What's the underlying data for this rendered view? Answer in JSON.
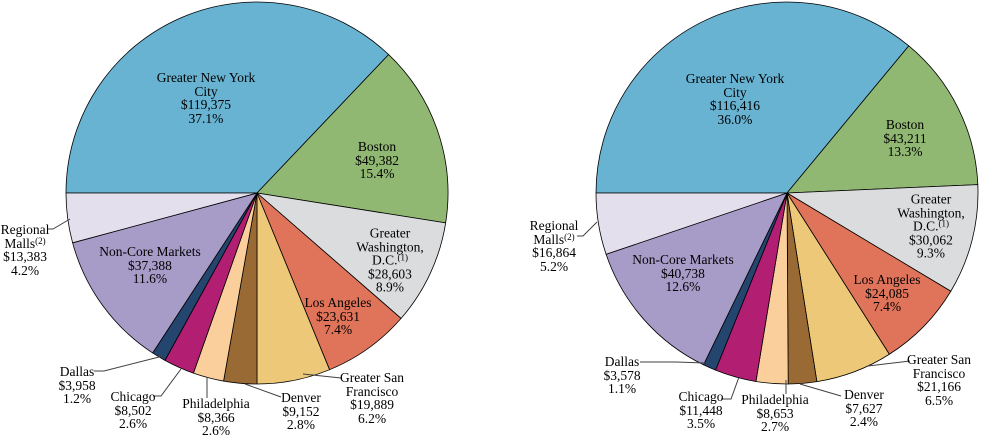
{
  "chart_data": [
    {
      "id": "left-pie",
      "type": "pie",
      "title": "",
      "start_angle_clockwise_from_top_deg": 270,
      "legend": "none",
      "slices": [
        {
          "name": "Greater New York City",
          "name_lines": [
            "Greater New York",
            "City"
          ],
          "footnote": "",
          "value": "$119,375",
          "value_num": 119375,
          "pct": "37.1%",
          "pct_num": 37.1,
          "color": "#68b3d2",
          "label_placement": "inside"
        },
        {
          "name": "Boston",
          "name_lines": [
            "Boston"
          ],
          "footnote": "",
          "value": "$49,382",
          "value_num": 49382,
          "pct": "15.4%",
          "pct_num": 15.4,
          "color": "#91b873",
          "label_placement": "inside"
        },
        {
          "name": "Greater Washington, D.C.",
          "name_lines": [
            "Greater",
            "Washington,",
            "D.C."
          ],
          "footnote": "(1)",
          "value": "$28,603",
          "value_num": 28603,
          "pct": "8.9%",
          "pct_num": 8.9,
          "color": "#dbdcde",
          "label_placement": "inside"
        },
        {
          "name": "Los Angeles",
          "name_lines": [
            "Los Angeles"
          ],
          "footnote": "",
          "value": "$23,631",
          "value_num": 23631,
          "pct": "7.4%",
          "pct_num": 7.4,
          "color": "#e0745a",
          "label_placement": "inside"
        },
        {
          "name": "Greater San Francisco",
          "name_lines": [
            "Greater San",
            "Francisco"
          ],
          "footnote": "",
          "value": "$19,889",
          "value_num": 19889,
          "pct": "6.2%",
          "pct_num": 6.2,
          "color": "#ecc878",
          "label_placement": "outside"
        },
        {
          "name": "Denver",
          "name_lines": [
            "Denver"
          ],
          "footnote": "",
          "value": "$9,152",
          "value_num": 9152,
          "pct": "2.8%",
          "pct_num": 2.8,
          "color": "#9a6a35",
          "label_placement": "outside"
        },
        {
          "name": "Philadelphia",
          "name_lines": [
            "Philadelphia"
          ],
          "footnote": "",
          "value": "$8,366",
          "value_num": 8366,
          "pct": "2.6%",
          "pct_num": 2.6,
          "color": "#fbcf9c",
          "label_placement": "outside"
        },
        {
          "name": "Chicago",
          "name_lines": [
            "Chicago"
          ],
          "footnote": "",
          "value": "$8,502",
          "value_num": 8502,
          "pct": "2.6%",
          "pct_num": 2.6,
          "color": "#b21f72",
          "label_placement": "outside"
        },
        {
          "name": "Dallas",
          "name_lines": [
            "Dallas"
          ],
          "footnote": "",
          "value": "$3,958",
          "value_num": 3958,
          "pct": "1.2%",
          "pct_num": 1.2,
          "color": "#24456e",
          "label_placement": "outside"
        },
        {
          "name": "Non-Core Markets",
          "name_lines": [
            "Non-Core Markets"
          ],
          "footnote": "",
          "value": "$37,388",
          "value_num": 37388,
          "pct": "11.6%",
          "pct_num": 11.6,
          "color": "#a79bc8",
          "label_placement": "inside"
        },
        {
          "name": "Regional Malls",
          "name_lines": [
            "Regional",
            "Malls"
          ],
          "footnote": "(2)",
          "value": "$13,383",
          "value_num": 13383,
          "pct": "4.2%",
          "pct_num": 4.2,
          "color": "#e3dfec",
          "label_placement": "outside"
        }
      ]
    },
    {
      "id": "right-pie",
      "type": "pie",
      "title": "",
      "start_angle_clockwise_from_top_deg": 270,
      "legend": "none",
      "slices": [
        {
          "name": "Greater New York City",
          "name_lines": [
            "Greater New York",
            "City"
          ],
          "footnote": "",
          "value": "$116,416",
          "value_num": 116416,
          "pct": "36.0%",
          "pct_num": 36.0,
          "color": "#68b3d2",
          "label_placement": "inside"
        },
        {
          "name": "Boston",
          "name_lines": [
            "Boston"
          ],
          "footnote": "",
          "value": "$43,211",
          "value_num": 43211,
          "pct": "13.3%",
          "pct_num": 13.3,
          "color": "#91b873",
          "label_placement": "inside"
        },
        {
          "name": "Greater Washington, D.C.",
          "name_lines": [
            "Greater",
            "Washington,",
            "D.C."
          ],
          "footnote": "(1)",
          "value": "$30,062",
          "value_num": 30062,
          "pct": "9.3%",
          "pct_num": 9.3,
          "color": "#dbdcde",
          "label_placement": "inside"
        },
        {
          "name": "Los Angeles",
          "name_lines": [
            "Los Angeles"
          ],
          "footnote": "",
          "value": "$24,085",
          "value_num": 24085,
          "pct": "7.4%",
          "pct_num": 7.4,
          "color": "#e0745a",
          "label_placement": "inside"
        },
        {
          "name": "Greater San Francisco",
          "name_lines": [
            "Greater San",
            "Francisco"
          ],
          "footnote": "",
          "value": "$21,166",
          "value_num": 21166,
          "pct": "6.5%",
          "pct_num": 6.5,
          "color": "#ecc878",
          "label_placement": "outside"
        },
        {
          "name": "Denver",
          "name_lines": [
            "Denver"
          ],
          "footnote": "",
          "value": "$7,627",
          "value_num": 7627,
          "pct": "2.4%",
          "pct_num": 2.4,
          "color": "#9a6a35",
          "label_placement": "outside"
        },
        {
          "name": "Philadelphia",
          "name_lines": [
            "Philadelphia"
          ],
          "footnote": "",
          "value": "$8,653",
          "value_num": 8653,
          "pct": "2.7%",
          "pct_num": 2.7,
          "color": "#fbcf9c",
          "label_placement": "outside"
        },
        {
          "name": "Chicago",
          "name_lines": [
            "Chicago"
          ],
          "footnote": "",
          "value": "$11,448",
          "value_num": 11448,
          "pct": "3.5%",
          "pct_num": 3.5,
          "color": "#b21f72",
          "label_placement": "outside"
        },
        {
          "name": "Dallas",
          "name_lines": [
            "Dallas"
          ],
          "footnote": "",
          "value": "$3,578",
          "value_num": 3578,
          "pct": "1.1%",
          "pct_num": 1.1,
          "color": "#24456e",
          "label_placement": "outside"
        },
        {
          "name": "Non-Core Markets",
          "name_lines": [
            "Non-Core Markets"
          ],
          "footnote": "",
          "value": "$40,738",
          "value_num": 40738,
          "pct": "12.6%",
          "pct_num": 12.6,
          "color": "#a79bc8",
          "label_placement": "inside"
        },
        {
          "name": "Regional Malls",
          "name_lines": [
            "Regional",
            "Malls"
          ],
          "footnote": "(2)",
          "value": "$16,864",
          "value_num": 16864,
          "pct": "5.2%",
          "pct_num": 5.2,
          "color": "#e3dfec",
          "label_placement": "outside"
        }
      ]
    }
  ],
  "styles": {
    "slice_outline_color": "#000000",
    "leader_line_color": "#404040",
    "label_text_color": "#000000"
  }
}
